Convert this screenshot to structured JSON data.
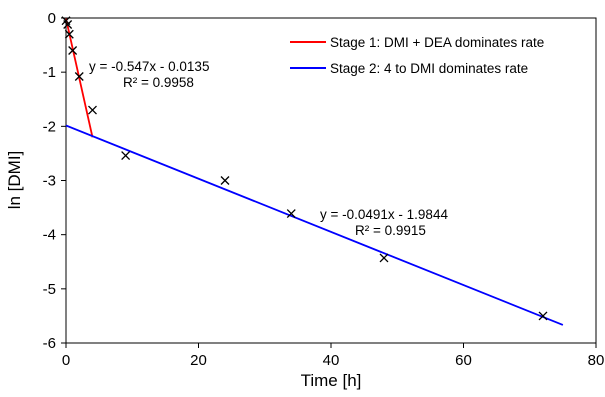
{
  "chart_data": {
    "type": "scatter",
    "title": "",
    "xlabel": "Time [h]",
    "ylabel": "ln [DMI]",
    "xlim": [
      0,
      80
    ],
    "ylim": [
      -6,
      0
    ],
    "xticks": [
      0,
      20,
      40,
      60,
      80
    ],
    "yticks": [
      0,
      -1,
      -2,
      -3,
      -4,
      -5,
      -6
    ],
    "grid": false,
    "legend_position": "top-right",
    "points": {
      "marker": "x",
      "color": "#000000",
      "x": [
        0,
        0.25,
        0.5,
        1,
        2,
        4,
        9,
        24,
        34,
        48,
        72
      ],
      "y": [
        -0.05,
        -0.12,
        -0.3,
        -0.6,
        -1.08,
        -1.7,
        -2.54,
        -3.0,
        -3.61,
        -4.43,
        -5.5
      ]
    },
    "series": [
      {
        "name": "Stage 1: DMI + DEA dominates rate",
        "type": "line",
        "color": "#ff0000",
        "x": [
          0,
          4
        ],
        "y": [
          -0.0135,
          -2.2015
        ],
        "equation": "y = -0.547x - 0.0135",
        "r_squared": "R² = 0.9958"
      },
      {
        "name": "Stage 2: 4 to DMI dominates rate",
        "type": "line",
        "color": "#0000ff",
        "x": [
          0,
          75
        ],
        "y": [
          -1.9844,
          -5.6669
        ],
        "equation": "y = -0.0491x - 1.9844",
        "r_squared": "R² = 0.9915"
      }
    ]
  }
}
